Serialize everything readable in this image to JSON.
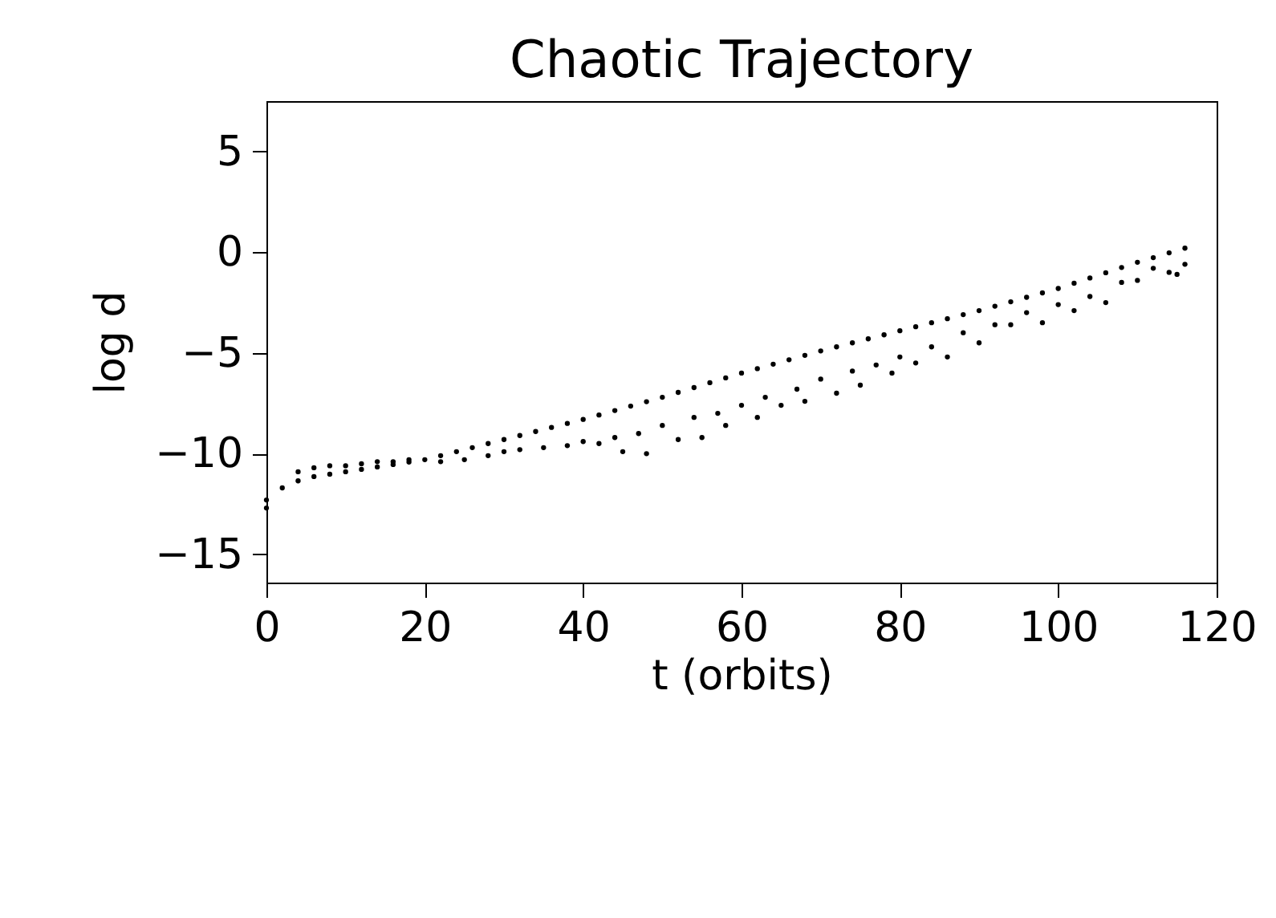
{
  "chart_data": {
    "type": "scatter",
    "title": "Chaotic Trajectory",
    "xlabel": "t (orbits)",
    "ylabel": "log d",
    "xlim": [
      0,
      120
    ],
    "xticks": [
      0,
      20,
      40,
      60,
      80,
      100,
      120
    ],
    "ylim": [
      -16.4,
      7.5
    ],
    "yticks": [
      -15,
      -10,
      -5,
      0,
      5
    ],
    "grid": false,
    "legend": false,
    "marker": "circle",
    "series": [
      {
        "color": "#000000",
        "x": [
          0,
          0,
          2,
          4,
          6,
          8,
          10,
          12,
          14,
          16,
          18,
          20,
          22,
          24,
          26,
          28,
          30,
          32,
          34,
          36,
          38,
          40,
          42,
          44,
          46,
          48,
          50,
          52,
          54,
          56,
          58,
          60,
          62,
          64,
          66,
          68,
          70,
          72,
          74,
          76,
          78,
          80,
          82,
          84,
          86,
          88,
          90,
          92,
          94,
          96,
          98,
          100,
          102,
          104,
          106,
          108,
          110,
          112,
          114,
          116,
          4,
          6,
          8,
          10,
          12,
          14,
          16,
          18,
          22,
          25,
          28,
          30,
          32,
          35,
          38,
          40,
          42,
          44,
          45,
          47,
          48,
          50,
          52,
          54,
          55,
          57,
          58,
          60,
          62,
          63,
          65,
          67,
          68,
          70,
          72,
          74,
          75,
          77,
          79,
          80,
          82,
          84,
          86,
          88,
          90,
          92,
          94,
          96,
          98,
          100,
          102,
          104,
          106,
          108,
          110,
          112,
          114,
          115,
          116
        ],
        "values": [
          -12.7,
          -12.3,
          -11.7,
          -11.35,
          -11.14,
          -11.02,
          -10.9,
          -10.78,
          -10.66,
          -10.54,
          -10.42,
          -10.3,
          -10.1,
          -9.9,
          -9.7,
          -9.5,
          -9.3,
          -9.1,
          -8.9,
          -8.7,
          -8.5,
          -8.3,
          -8.08,
          -7.86,
          -7.64,
          -7.42,
          -7.2,
          -6.96,
          -6.72,
          -6.48,
          -6.24,
          -6.0,
          -5.78,
          -5.56,
          -5.34,
          -5.12,
          -4.9,
          -4.7,
          -4.5,
          -4.3,
          -4.1,
          -3.9,
          -3.7,
          -3.5,
          -3.3,
          -3.1,
          -2.9,
          -2.68,
          -2.46,
          -2.24,
          -2.02,
          -1.8,
          -1.54,
          -1.28,
          -1.02,
          -0.76,
          -0.5,
          -0.27,
          -0.03,
          0.2,
          -10.9,
          -10.7,
          -10.6,
          -10.6,
          -10.5,
          -10.4,
          -10.4,
          -10.3,
          -10.4,
          -10.3,
          -10.1,
          -9.9,
          -9.8,
          -9.7,
          -9.6,
          -9.4,
          -9.5,
          -9.2,
          -9.9,
          -9.0,
          -10.0,
          -8.6,
          -9.3,
          -8.2,
          -9.2,
          -8.0,
          -8.6,
          -7.6,
          -8.2,
          -7.2,
          -7.6,
          -6.8,
          -7.4,
          -6.3,
          -7.0,
          -5.9,
          -6.6,
          -5.6,
          -6.0,
          -5.2,
          -5.5,
          -4.7,
          -5.2,
          -4.0,
          -4.5,
          -3.6,
          -3.6,
          -3.0,
          -3.5,
          -2.6,
          -2.9,
          -2.2,
          -2.5,
          -1.5,
          -1.4,
          -0.8,
          -1.0,
          -1.1,
          -0.6
        ]
      }
    ]
  }
}
